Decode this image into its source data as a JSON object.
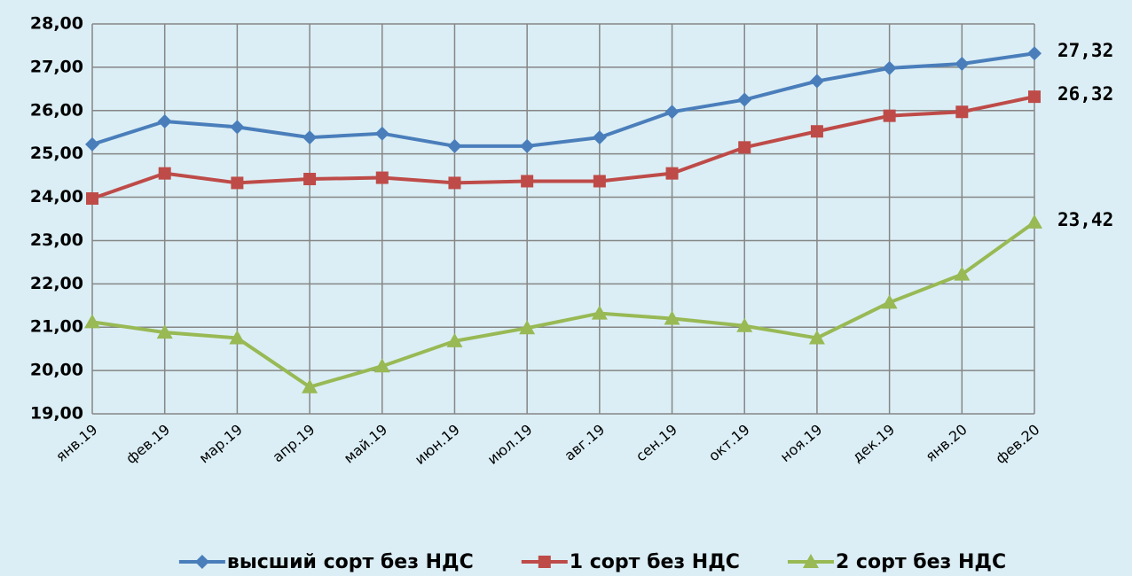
{
  "chart_data": {
    "type": "line",
    "categories": [
      "янв.19",
      "фев.19",
      "мар.19",
      "апр.19",
      "май.19",
      "июн.19",
      "июл.19",
      "авг.19",
      "сен.19",
      "окт.19",
      "ноя.19",
      "дек.19",
      "янв.20",
      "фев.20"
    ],
    "series": [
      {
        "name": "высший сорт без НДС",
        "color": "#4a7ebb",
        "marker": "diamond",
        "values": [
          25.22,
          25.75,
          25.62,
          25.38,
          25.47,
          25.18,
          25.18,
          25.38,
          25.97,
          26.25,
          26.68,
          26.98,
          27.08,
          27.32
        ],
        "value_labels": [
          null,
          null,
          null,
          null,
          null,
          null,
          null,
          null,
          null,
          null,
          null,
          null,
          null,
          "27,32"
        ]
      },
      {
        "name": "1 сорт без НДС",
        "color": "#be4b48",
        "marker": "square",
        "values": [
          23.97,
          24.55,
          24.33,
          24.42,
          24.45,
          24.33,
          24.37,
          24.37,
          24.55,
          25.15,
          25.52,
          25.88,
          25.97,
          26.32
        ],
        "value_labels": [
          null,
          null,
          null,
          null,
          null,
          null,
          null,
          null,
          null,
          null,
          null,
          null,
          null,
          "26,32"
        ]
      },
      {
        "name": "2 сорт без НДС",
        "color": "#98b954",
        "marker": "triangle",
        "values": [
          21.12,
          20.88,
          20.75,
          19.62,
          20.1,
          20.68,
          20.98,
          21.32,
          21.2,
          21.03,
          20.75,
          21.57,
          22.22,
          23.42
        ],
        "value_labels": [
          null,
          null,
          null,
          null,
          null,
          null,
          null,
          null,
          null,
          null,
          null,
          null,
          null,
          "23,42"
        ]
      }
    ],
    "ylim": [
      19,
      28
    ],
    "yticks": [
      {
        "value": 19,
        "label": "19,00"
      },
      {
        "value": 20,
        "label": "20,00"
      },
      {
        "value": 21,
        "label": "21,00"
      },
      {
        "value": 22,
        "label": "22,00"
      },
      {
        "value": 23,
        "label": "23,00"
      },
      {
        "value": 24,
        "label": "24,00"
      },
      {
        "value": 25,
        "label": "25,00"
      },
      {
        "value": 26,
        "label": "26,00"
      },
      {
        "value": 27,
        "label": "27,00"
      },
      {
        "value": 28,
        "label": "28,00"
      }
    ],
    "grid": true,
    "legend": "bottom"
  }
}
